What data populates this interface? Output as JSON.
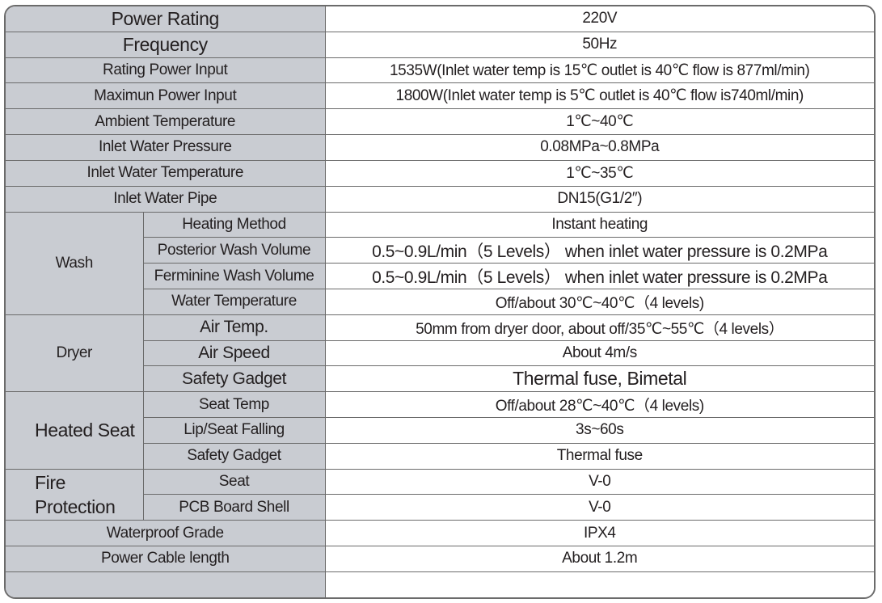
{
  "rows_simple_top": [
    {
      "label": "Power Rating",
      "value": "220V"
    },
    {
      "label": "Frequency",
      "value": "50Hz"
    },
    {
      "label": "Rating Power Input",
      "value": "1535W(Inlet water temp is 15℃ outlet is 40℃ flow is 877ml/min)"
    },
    {
      "label": "Maximun Power Input",
      "value": "1800W(Inlet water temp is 5℃ outlet is 40℃ flow is740ml/min)"
    },
    {
      "label": "Ambient Temperature",
      "value": "1℃~40℃"
    },
    {
      "label": "Inlet Water Pressure",
      "value": "0.08MPa~0.8MPa"
    },
    {
      "label": "Inlet Water Temperature",
      "value": "1℃~35℃"
    },
    {
      "label": "Inlet Water Pipe",
      "value": "DN15(G1/2″)"
    }
  ],
  "wash": {
    "group": "Wash",
    "items": [
      {
        "label": "Heating Method",
        "value": "Instant heating"
      },
      {
        "label": "Posterior Wash Volume",
        "value": "0.5~0.9L/min（5 Levels） when inlet water pressure is 0.2MPa"
      },
      {
        "label": "Ferminine Wash Volume",
        "value": "0.5~0.9L/min（5 Levels） when inlet water pressure is 0.2MPa"
      },
      {
        "label": "Water Temperature",
        "value": "Off/about 30℃~40℃（4 levels)"
      }
    ]
  },
  "dryer": {
    "group": "Dryer",
    "items": [
      {
        "label": "Air Temp.",
        "value": "50mm from dryer door, about off/35℃~55℃（4 levels）"
      },
      {
        "label": "Air Speed",
        "value": "About 4m/s"
      },
      {
        "label": "Safety Gadget",
        "value": "Thermal fuse, Bimetal"
      }
    ]
  },
  "heated_seat": {
    "group": "Heated Seat",
    "items": [
      {
        "label": "Seat Temp",
        "value": "Off/about 28℃~40℃（4 levels)"
      },
      {
        "label": "Lip/Seat Falling",
        "value": "3s~60s"
      },
      {
        "label": "Safety Gadget",
        "value": "Thermal fuse"
      }
    ]
  },
  "fire_protection": {
    "group": "Fire Protection",
    "items": [
      {
        "label": "Seat",
        "value": "V-0"
      },
      {
        "label": "PCB Board Shell",
        "value": "V-0"
      }
    ]
  },
  "rows_simple_bottom": [
    {
      "label": "Waterproof Grade",
      "value": "IPX4"
    },
    {
      "label": "Power Cable length",
      "value": "About 1.2m"
    }
  ],
  "colors": {
    "label_bg": "#c9ccd2",
    "border": "#6b6b6b",
    "text": "#231f20"
  }
}
